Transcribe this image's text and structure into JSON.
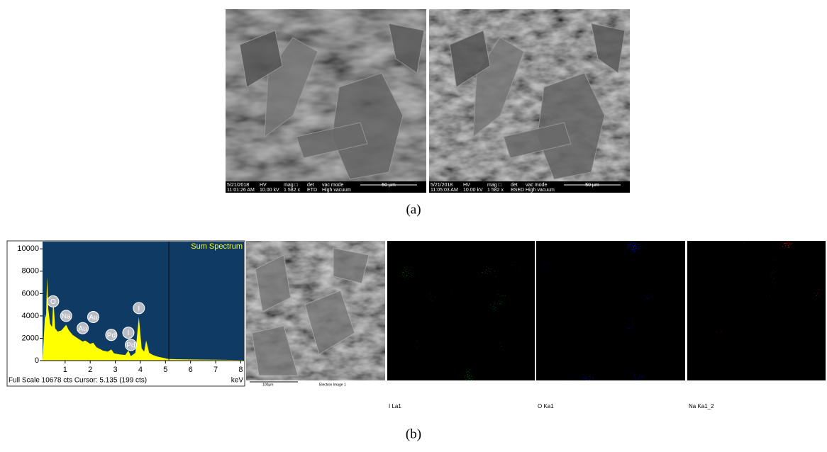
{
  "figure": {
    "panel_a": {
      "caption": "(a)",
      "images": [
        {
          "date": "5/21/2018",
          "time": "11:01:26 AM",
          "hv_label": "HV",
          "hv": "10.00 kV",
          "mag_label": "mag □",
          "mag": "1 582 x",
          "det_label": "det",
          "det": "ETD",
          "vac_label": "vac mode",
          "vac": "High vacuum",
          "scale": "50 µm"
        },
        {
          "date": "5/21/2018",
          "time": "11:05:03 AM",
          "hv_label": "HV",
          "hv": "10.00 kV",
          "mag_label": "mag □",
          "mag": "1 582 x",
          "det_label": "det",
          "det": "BSED",
          "vac_label": "vac mode",
          "vac": "High vacuum",
          "scale": "50 µm"
        }
      ]
    },
    "panel_b": {
      "caption": "(b)",
      "spectrum": {
        "type": "area",
        "title": "Sum Spectrum",
        "footer": "Full Scale 10678 cts Cursor: 5.135  (199 cts)",
        "x_unit": "keV",
        "color": "#ffff00",
        "background": "#0f3a63",
        "xlim": [
          0.1,
          8.13
        ],
        "ylim": [
          0,
          10650
        ],
        "xticks": [
          1,
          2,
          3,
          4,
          5,
          6,
          7,
          8
        ],
        "yticks": [
          0,
          2000,
          4000,
          6000,
          8000,
          10000
        ],
        "cursor": 5.135,
        "x": [
          0.1,
          0.2,
          0.24,
          0.28,
          0.33,
          0.4,
          0.48,
          0.53,
          0.6,
          0.7,
          0.85,
          1.04,
          1.15,
          1.3,
          1.5,
          1.7,
          1.8,
          2.0,
          2.12,
          2.25,
          2.5,
          2.7,
          2.84,
          2.95,
          3.2,
          3.4,
          3.52,
          3.62,
          3.8,
          3.94,
          4.05,
          4.15,
          4.23,
          4.35,
          4.5,
          4.7,
          4.9,
          5.1,
          5.5,
          6.0,
          7.0,
          8.1
        ],
        "values": [
          0,
          4200,
          3800,
          7500,
          4600,
          3300,
          3000,
          5600,
          2900,
          2600,
          2700,
          3200,
          2700,
          2300,
          2000,
          1700,
          1800,
          1500,
          1600,
          1200,
          900,
          800,
          1000,
          650,
          550,
          500,
          900,
          400,
          700,
          3900,
          1100,
          800,
          1800,
          700,
          500,
          350,
          250,
          150,
          120,
          100,
          80,
          50
        ],
        "peaks": [
          {
            "label": "O",
            "x": 0.52,
            "y": 5300
          },
          {
            "label": "Na",
            "x": 1.04,
            "y": 4000
          },
          {
            "label": "Au",
            "x": 1.7,
            "y": 2900
          },
          {
            "label": "Au",
            "x": 2.12,
            "y": 3900
          },
          {
            "label": "Pd",
            "x": 2.84,
            "y": 2300
          },
          {
            "label": "I",
            "x": 3.52,
            "y": 2500
          },
          {
            "label": "Pd",
            "x": 3.62,
            "y": 1400
          },
          {
            "label": "I",
            "x": 3.94,
            "y": 4700
          }
        ]
      },
      "electron_image": {
        "scale": "100µm",
        "label": "Electron Image 1"
      },
      "maps": [
        {
          "label": "I La1",
          "color": "#00d000"
        },
        {
          "label": "O Ka1",
          "color": "#2020ff"
        },
        {
          "label": "Na Ka1_2",
          "color": "#ff2020"
        }
      ]
    }
  }
}
